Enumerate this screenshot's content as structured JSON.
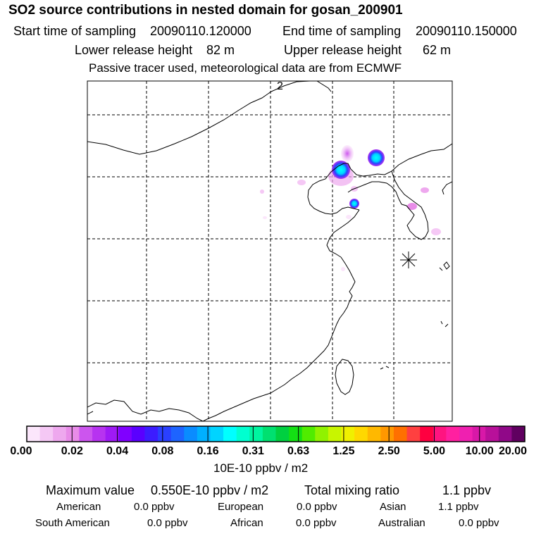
{
  "header": {
    "title": "SO2 source contributions in nested domain for gosan_200901",
    "start_label": "Start time of sampling",
    "start_value": "20090110.120000",
    "end_label": "End time of sampling",
    "end_value": "20090110.150000",
    "lower_label": "Lower release height",
    "lower_value": "82 m",
    "upper_label": "Upper release height",
    "upper_value": "62 m",
    "note": "Passive tracer used, meteorological data are from ECMWF"
  },
  "map": {
    "marker_label": "2",
    "station_marker": "asterisk-icon"
  },
  "legend": {
    "ticks": [
      "0.00",
      "0.02",
      "0.04",
      "0.08",
      "0.16",
      "0.31",
      "0.63",
      "1.25",
      "2.50",
      "5.00",
      "10.00",
      "20.00"
    ],
    "colors": [
      "#fbe6fb",
      "#f5c8f5",
      "#eea8ee",
      "#e88ce8",
      "#cc55ee",
      "#b733f0",
      "#9f1af5",
      "#8000ff",
      "#5a00ff",
      "#3c1cff",
      "#2a40ff",
      "#1e64ff",
      "#0a8cff",
      "#00b0ff",
      "#00d4ff",
      "#00ffff",
      "#00ffd0",
      "#00f5a0",
      "#00e070",
      "#00d040",
      "#14e014",
      "#50ec00",
      "#90f200",
      "#c8f500",
      "#f0f000",
      "#ffd800",
      "#ffb800",
      "#ff9800",
      "#ff7000",
      "#ff4040",
      "#ff0040",
      "#ff1480",
      "#ff20a0",
      "#ef20b0",
      "#d818a8",
      "#b8109a",
      "#900888",
      "#600060"
    ],
    "unit": "10E-10 ppbv / m2"
  },
  "stats": {
    "max_label": "Maximum value",
    "max_value": "0.550E-10 ppbv / m2",
    "total_label": "Total mixing ratio",
    "total_value": "1.1 ppbv",
    "regions": [
      {
        "name": "American",
        "value": "0.0 ppbv"
      },
      {
        "name": "European",
        "value": "0.0 ppbv"
      },
      {
        "name": "Asian",
        "value": "1.1 ppbv"
      },
      {
        "name": "South American",
        "value": "0.0 ppbv"
      },
      {
        "name": "African",
        "value": "0.0 ppbv"
      },
      {
        "name": "Australian",
        "value": "0.0 ppbv"
      }
    ]
  }
}
